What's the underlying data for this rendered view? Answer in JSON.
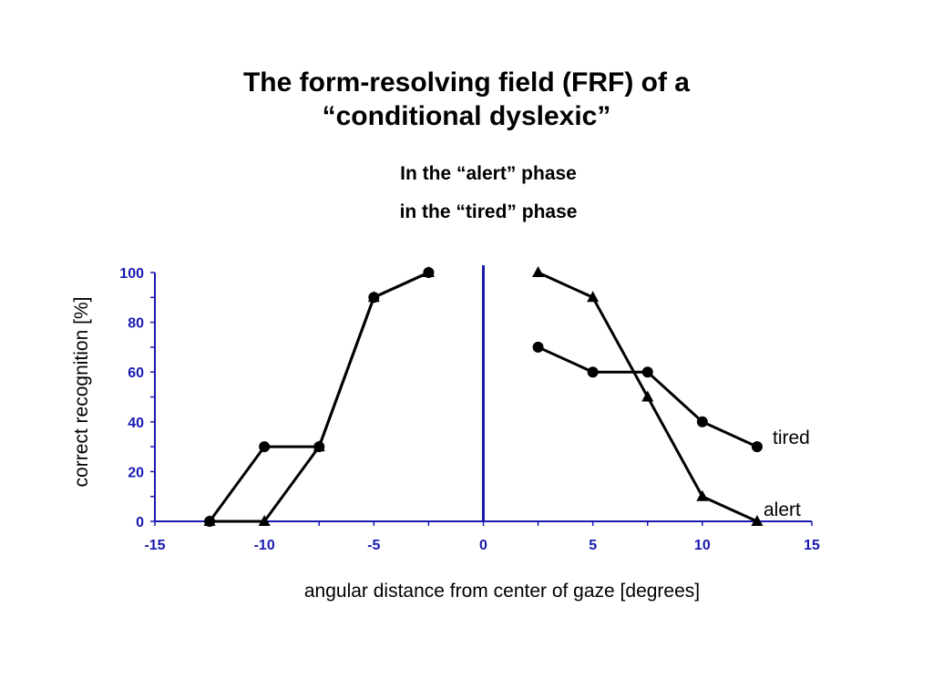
{
  "title": {
    "line1": "The form-resolving field (FRF) of a",
    "line2": "“conditional dyslexic”"
  },
  "legend": {
    "alert": "In the “alert” phase",
    "tired": "in the “tired” phase"
  },
  "colors": {
    "axis": "#1a1ab0",
    "tick_label": "#1a1ab0",
    "series": "#000000",
    "highlight": "#c0163a"
  },
  "chart_data": {
    "type": "line",
    "xlabel": "angular distance from center of gaze  [degrees]",
    "ylabel": "correct recognition  [%]",
    "xlim": [
      -15,
      15
    ],
    "ylim": [
      0,
      100
    ],
    "x_ticks": [
      -15,
      -10,
      -5,
      0,
      5,
      10,
      15
    ],
    "y_ticks": [
      0,
      20,
      40,
      60,
      80,
      100
    ],
    "vertical_line_at": 0,
    "series": [
      {
        "name": "tired",
        "marker": "circle",
        "segments": [
          [
            [
              -12.5,
              0
            ],
            [
              -10,
              30
            ],
            [
              -7.5,
              30
            ],
            [
              -5,
              90
            ],
            [
              -2.5,
              100
            ]
          ],
          [
            [
              2.5,
              70
            ],
            [
              5,
              60
            ],
            [
              7.5,
              60
            ],
            [
              10,
              40
            ],
            [
              12.5,
              30
            ]
          ]
        ]
      },
      {
        "name": "alert",
        "marker": "triangle",
        "segments": [
          [
            [
              -12.5,
              0
            ],
            [
              -10,
              0
            ],
            [
              -7.5,
              30
            ],
            [
              -5,
              90
            ],
            [
              -2.5,
              100
            ]
          ],
          [
            [
              2.5,
              100
            ],
            [
              5,
              90
            ],
            [
              7.5,
              50
            ],
            [
              10,
              10
            ],
            [
              12.5,
              0
            ]
          ]
        ]
      }
    ],
    "highlight_segment": [
      [
        -12.5,
        0
      ],
      [
        -10,
        0
      ]
    ]
  }
}
